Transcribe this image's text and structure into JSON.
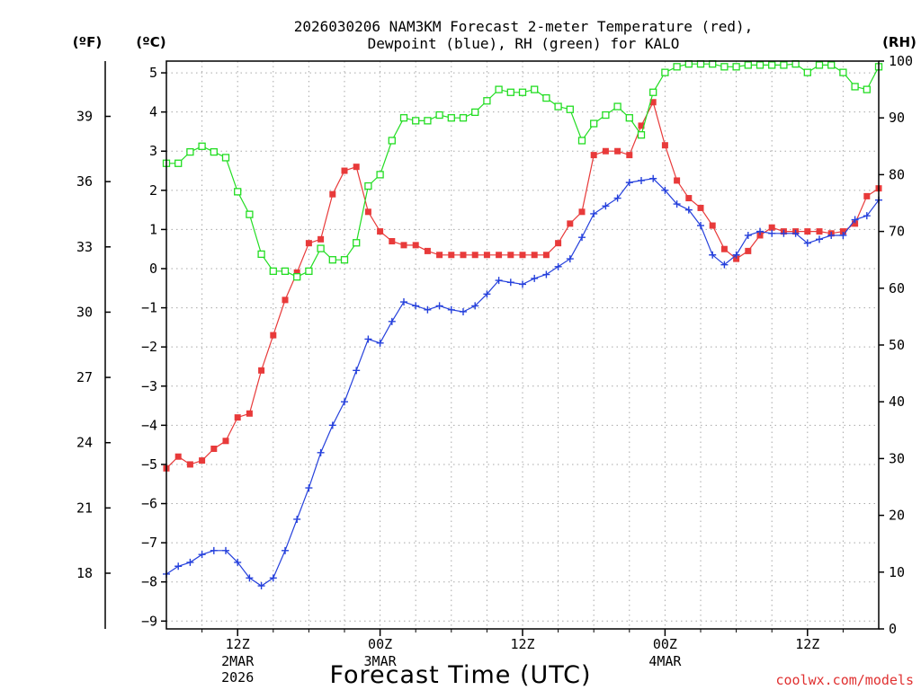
{
  "chart_data": {
    "type": "line",
    "title_line1": "2026030206 NAM3KM Forecast 2-meter Temperature (red),",
    "title_line2": "Dewpoint (blue), RH (green) for KALO",
    "xlabel": "Forecast Time (UTC)",
    "credit": "coolwx.com/models",
    "unit_left_outer": "(ºF)",
    "unit_left_inner": "(ºC)",
    "unit_right": "(RH)",
    "x_range_hours": [
      6,
      66
    ],
    "y_celsius_range": [
      -9.2,
      5.3
    ],
    "y_rh_range": [
      0,
      100
    ],
    "y_celsius_ticks": [
      "5",
      "4",
      "3",
      "2",
      "1",
      "0",
      "−1",
      "−2",
      "−3",
      "−4",
      "−5",
      "−6",
      "−7",
      "−8",
      "−9"
    ],
    "y_celsius_values": [
      5,
      4,
      3,
      2,
      1,
      0,
      -1,
      -2,
      -3,
      -4,
      -5,
      -6,
      -7,
      -8,
      -9
    ],
    "y_fahrenheit_ticks": [
      "39",
      "36",
      "33",
      "30",
      "27",
      "24",
      "21",
      "18"
    ],
    "y_fahrenheit_values": [
      39,
      36,
      33,
      30,
      27,
      24,
      21,
      18
    ],
    "y_rh_ticks": [
      "100",
      "90",
      "80",
      "70",
      "60",
      "50",
      "40",
      "30",
      "20",
      "10",
      "0"
    ],
    "y_rh_values": [
      100,
      90,
      80,
      70,
      60,
      50,
      40,
      30,
      20,
      10,
      0
    ],
    "x_ticks": [
      {
        "hour": 12,
        "line1": "12Z",
        "line2": "2MAR",
        "line3": "2026"
      },
      {
        "hour": 24,
        "line1": "00Z",
        "line2": "3MAR",
        "line3": ""
      },
      {
        "hour": 36,
        "line1": "12Z",
        "line2": "",
        "line3": ""
      },
      {
        "hour": 48,
        "line1": "00Z",
        "line2": "4MAR",
        "line3": ""
      },
      {
        "hour": 60,
        "line1": "12Z",
        "line2": "",
        "line3": ""
      }
    ],
    "grid_hours": [
      9,
      12,
      15,
      18,
      21,
      24,
      27,
      30,
      33,
      36,
      39,
      42,
      45,
      48,
      51,
      54,
      57,
      60,
      63,
      66
    ],
    "series": [
      {
        "name": "Temperature",
        "axis": "celsius",
        "color": "#e83a3a",
        "marker": "filled-square",
        "x": [
          6,
          7,
          8,
          9,
          10,
          11,
          12,
          13,
          14,
          15,
          16,
          17,
          18,
          19,
          20,
          21,
          22,
          23,
          24,
          25,
          26,
          27,
          28,
          29,
          30,
          31,
          32,
          33,
          34,
          35,
          36,
          37,
          38,
          39,
          40,
          41,
          42,
          43,
          44,
          45,
          46,
          47,
          48,
          49,
          50,
          51,
          52,
          53,
          54,
          55,
          56,
          57,
          58,
          59,
          60,
          61,
          62,
          63,
          64,
          65,
          66
        ],
        "values": [
          -5.1,
          -4.8,
          -5.0,
          -4.9,
          -4.6,
          -4.4,
          -3.8,
          -3.7,
          -2.6,
          -1.7,
          -0.8,
          -0.1,
          0.65,
          0.75,
          1.9,
          2.5,
          2.6,
          1.45,
          0.95,
          0.7,
          0.6,
          0.6,
          0.45,
          0.35,
          0.35,
          0.35,
          0.35,
          0.35,
          0.35,
          0.35,
          0.35,
          0.35,
          0.35,
          0.65,
          1.15,
          1.45,
          2.9,
          3.0,
          3.0,
          2.9,
          3.65,
          4.25,
          3.15,
          2.25,
          1.8,
          1.55,
          1.1,
          0.5,
          0.25,
          0.45,
          0.85,
          1.05,
          0.95,
          0.95,
          0.95,
          0.95,
          0.9,
          0.95,
          1.15,
          1.85,
          2.05
        ]
      },
      {
        "name": "Dewpoint",
        "axis": "celsius",
        "color": "#2540dc",
        "marker": "plus",
        "x": [
          6,
          7,
          8,
          9,
          10,
          11,
          12,
          13,
          14,
          15,
          16,
          17,
          18,
          19,
          20,
          21,
          22,
          23,
          24,
          25,
          26,
          27,
          28,
          29,
          30,
          31,
          32,
          33,
          34,
          35,
          36,
          37,
          38,
          39,
          40,
          41,
          42,
          43,
          44,
          45,
          46,
          47,
          48,
          49,
          50,
          51,
          52,
          53,
          54,
          55,
          56,
          57,
          58,
          59,
          60,
          61,
          62,
          63,
          64,
          65,
          66
        ],
        "values": [
          -7.8,
          -7.6,
          -7.5,
          -7.3,
          -7.2,
          -7.2,
          -7.5,
          -7.9,
          -8.1,
          -7.9,
          -7.2,
          -6.4,
          -5.6,
          -4.7,
          -4.0,
          -3.4,
          -2.6,
          -1.8,
          -1.9,
          -1.35,
          -0.85,
          -0.95,
          -1.05,
          -0.95,
          -1.05,
          -1.1,
          -0.95,
          -0.65,
          -0.3,
          -0.35,
          -0.4,
          -0.25,
          -0.15,
          0.05,
          0.25,
          0.8,
          1.4,
          1.6,
          1.8,
          2.2,
          2.25,
          2.3,
          2.0,
          1.65,
          1.5,
          1.1,
          0.35,
          0.1,
          0.35,
          0.85,
          0.95,
          0.9,
          0.9,
          0.9,
          0.65,
          0.75,
          0.85,
          0.85,
          1.25,
          1.35,
          1.75
        ]
      },
      {
        "name": "Relative Humidity",
        "axis": "rh",
        "color": "#22dd22",
        "marker": "open-square",
        "x": [
          6,
          7,
          8,
          9,
          10,
          11,
          12,
          13,
          14,
          15,
          16,
          17,
          18,
          19,
          20,
          21,
          22,
          23,
          24,
          25,
          26,
          27,
          28,
          29,
          30,
          31,
          32,
          33,
          34,
          35,
          36,
          37,
          38,
          39,
          40,
          41,
          42,
          43,
          44,
          45,
          46,
          47,
          48,
          49,
          50,
          51,
          52,
          53,
          54,
          55,
          56,
          57,
          58,
          59,
          60,
          61,
          62,
          63,
          64,
          65,
          66
        ],
        "values": [
          82,
          82,
          84,
          85,
          84,
          83,
          77,
          73,
          66,
          63,
          63,
          62,
          63,
          67,
          65,
          65,
          68,
          78,
          80,
          86,
          90,
          89.5,
          89.5,
          90.5,
          90,
          90,
          91,
          93,
          95,
          94.5,
          94.5,
          95,
          93.5,
          92,
          91.5,
          86,
          89,
          90.5,
          92,
          90,
          87,
          94.5,
          98,
          99,
          99.5,
          99.5,
          99.5,
          99,
          99,
          99.3,
          99.3,
          99.3,
          99.3,
          99.5,
          98,
          99.3,
          99.3,
          98,
          95.5,
          95,
          99
        ]
      }
    ]
  }
}
